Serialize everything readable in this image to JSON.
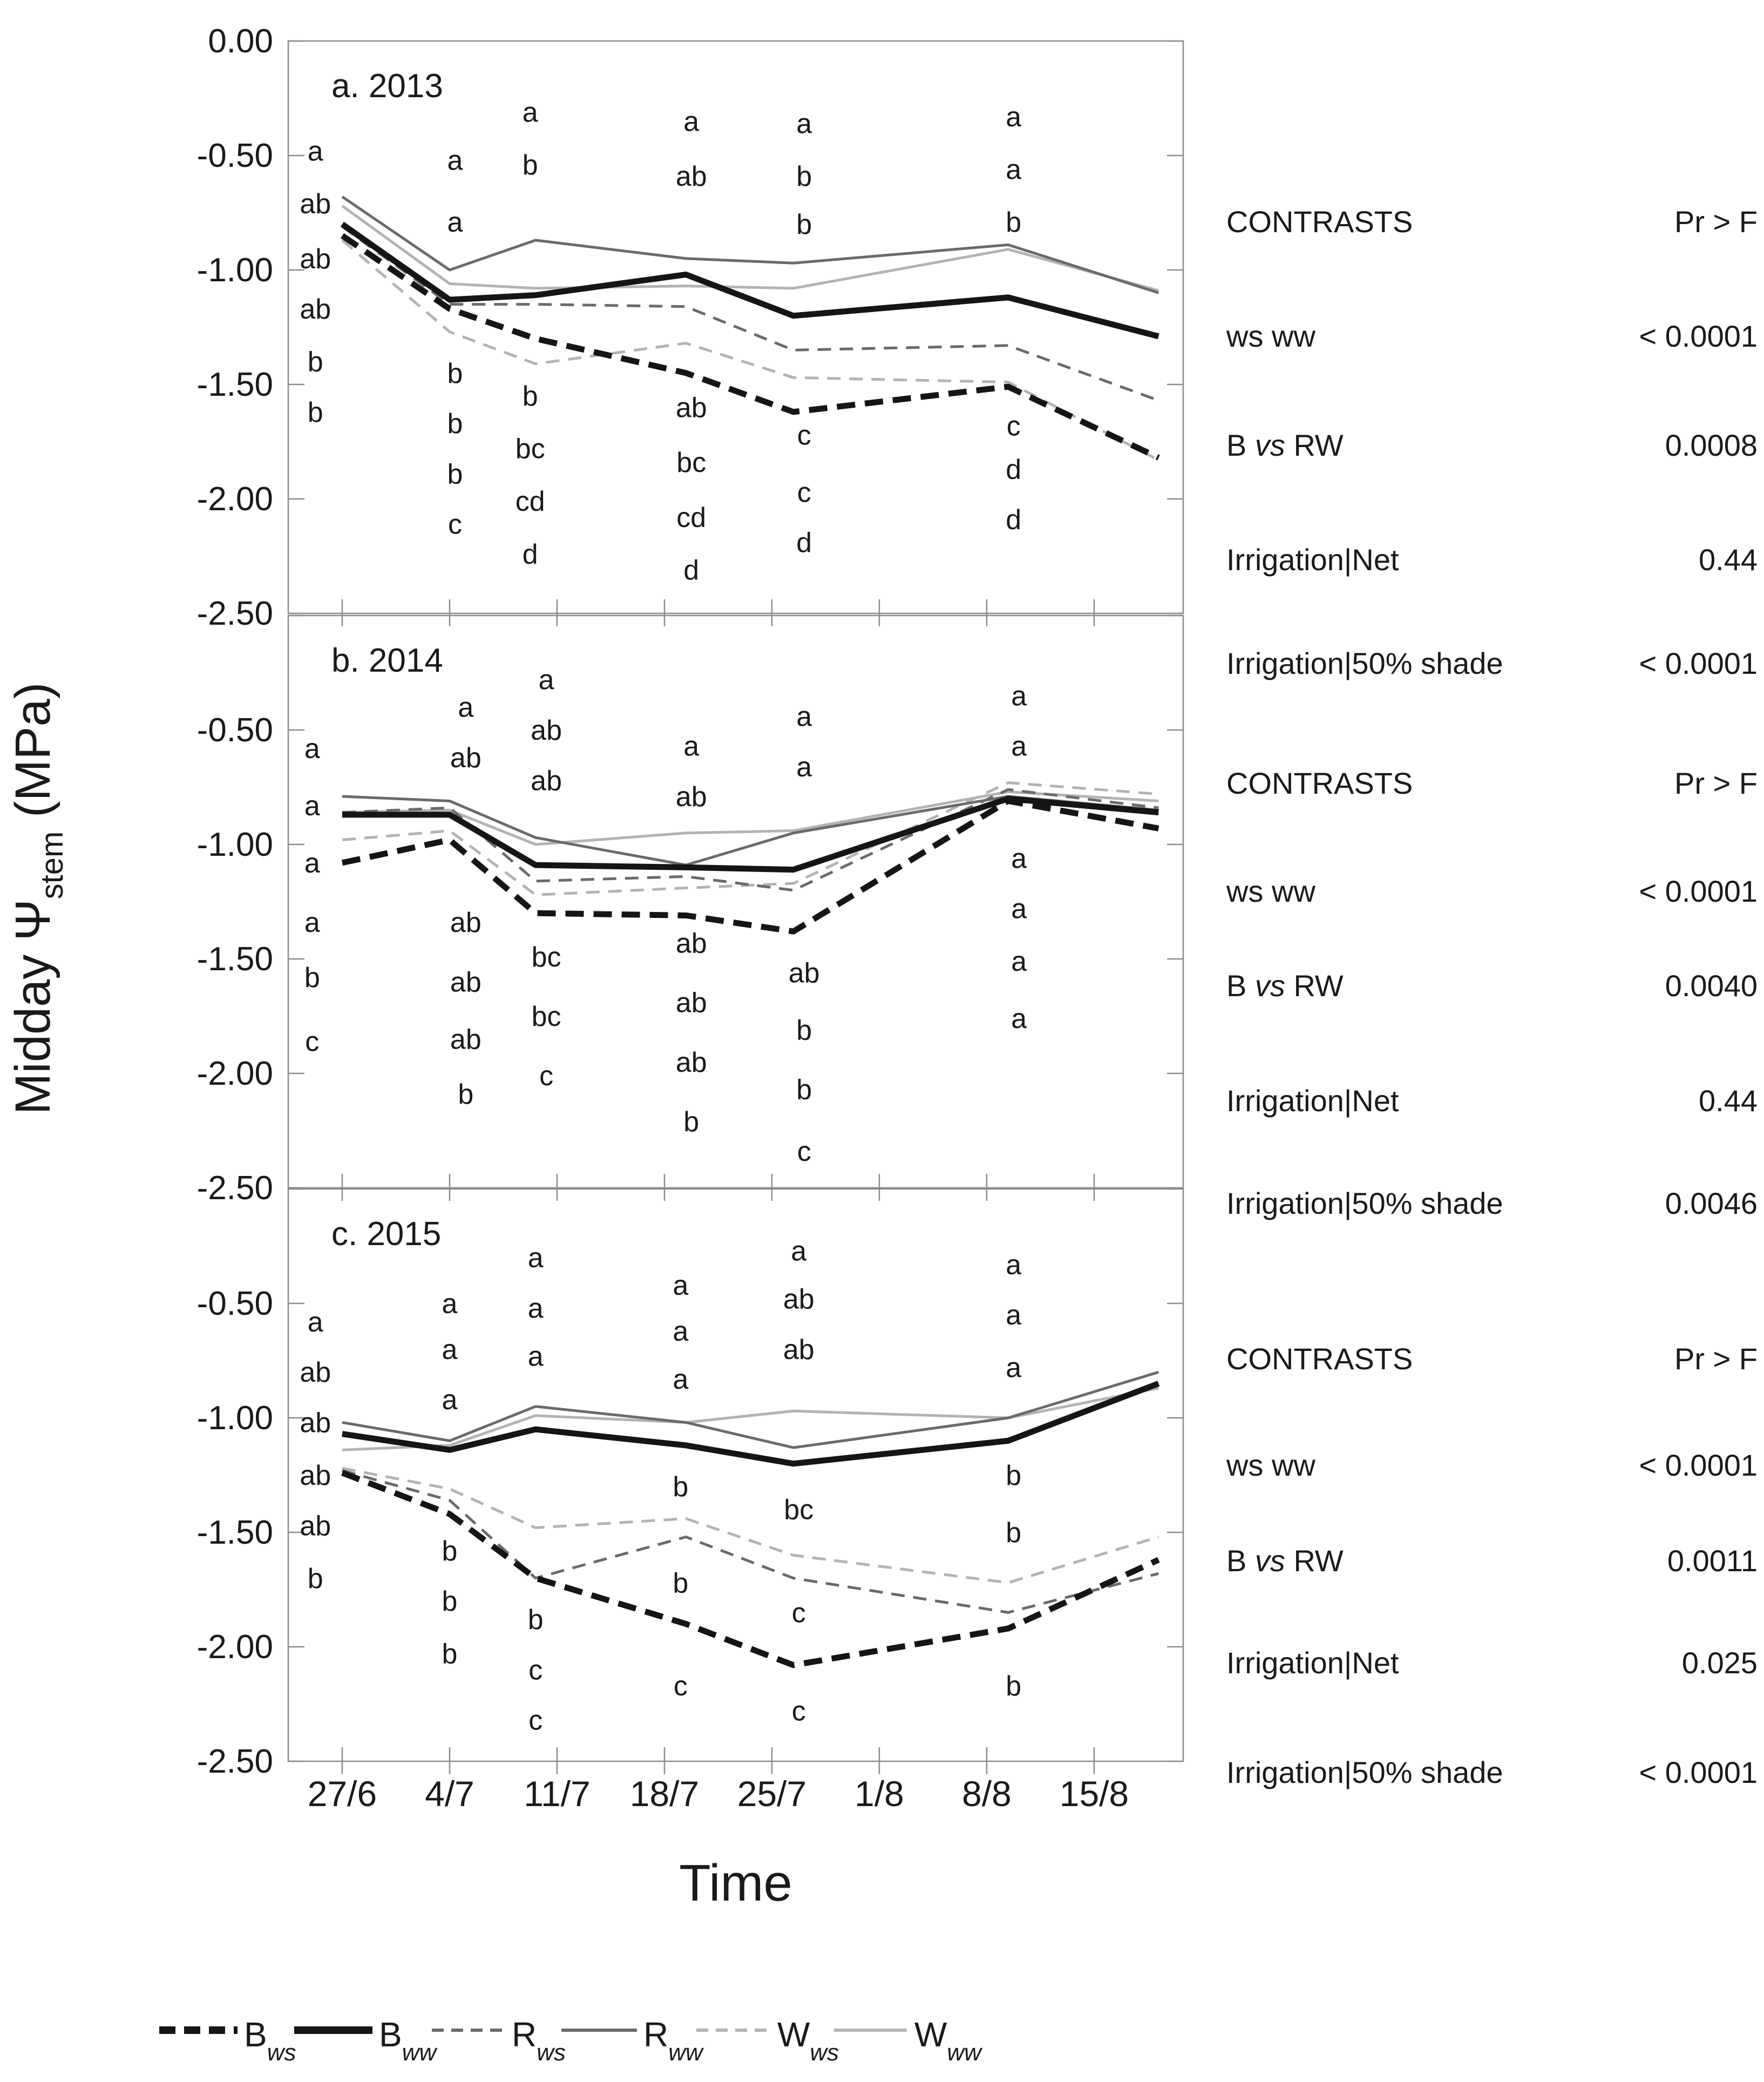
{
  "figure": {
    "y_axis_title": {
      "pre": "Midday Ψ",
      "sub": "stem",
      "post": " (MPa)"
    },
    "x_axis_title": "Time",
    "x_tick_labels": [
      "27/6",
      "4/7",
      "11/7",
      "18/7",
      "25/7",
      "1/8",
      "8/8",
      "15/8"
    ],
    "colors": {
      "B": "#151515",
      "R": "#6a6a6a",
      "W": "#b3b3b3",
      "axis": "#8c8c8c"
    },
    "legend": [
      {
        "name": "B",
        "sub": "ws",
        "series": "B_ws",
        "style": "dashed",
        "weight": "thick",
        "color_key": "B"
      },
      {
        "name": "B",
        "sub": "ww",
        "series": "B_ww",
        "style": "solid",
        "weight": "thick",
        "color_key": "B"
      },
      {
        "name": "R",
        "sub": "ws",
        "series": "R_ws",
        "style": "dashed",
        "weight": "thin",
        "color_key": "R"
      },
      {
        "name": "R",
        "sub": "ww",
        "series": "R_ww",
        "style": "solid",
        "weight": "thin",
        "color_key": "R"
      },
      {
        "name": "W",
        "sub": "ws",
        "series": "W_ws",
        "style": "dashed",
        "weight": "thin",
        "color_key": "W"
      },
      {
        "name": "W",
        "sub": "ww",
        "series": "W_ww",
        "style": "solid",
        "weight": "thin",
        "color_key": "W"
      }
    ]
  },
  "chart_data": [
    {
      "type": "line",
      "panel": "a",
      "title": "a. 2013",
      "ylabel": "Midday Ψstem (MPa)",
      "xlabel": "Time",
      "ylim": [
        -2.5,
        0
      ],
      "grid": false,
      "y_tick_labels": [
        "0.00",
        "-0.50",
        "-1.00",
        "-1.50",
        "-2.00",
        "-2.50"
      ],
      "x_units": [
        0,
        1,
        1.8,
        3.2,
        4.2,
        6.2,
        7.6
      ],
      "series": [
        {
          "name": "W_ww",
          "values": [
            -0.72,
            -1.06,
            -1.08,
            -1.07,
            -1.08,
            -0.91,
            -1.09
          ]
        },
        {
          "name": "W_ws",
          "values": [
            -0.87,
            -1.27,
            -1.41,
            -1.32,
            -1.47,
            -1.49,
            -1.83
          ]
        },
        {
          "name": "R_ww",
          "values": [
            -0.68,
            -1.0,
            -0.87,
            -0.95,
            -0.97,
            -0.89,
            -1.1
          ]
        },
        {
          "name": "R_ws",
          "values": [
            -0.81,
            -1.15,
            -1.15,
            -1.16,
            -1.35,
            -1.33,
            -1.57
          ]
        },
        {
          "name": "B_ww",
          "values": [
            -0.8,
            -1.13,
            -1.11,
            -1.02,
            -1.2,
            -1.12,
            -1.29
          ]
        },
        {
          "name": "B_ws",
          "values": [
            -0.85,
            -1.17,
            -1.3,
            -1.45,
            -1.62,
            -1.51,
            -1.82
          ]
        }
      ],
      "sig_letters": [
        {
          "x": -0.25,
          "items": [
            [
              -0.48,
              "a"
            ],
            [
              -0.71,
              "ab"
            ],
            [
              -0.95,
              "ab"
            ],
            [
              -1.17,
              "ab"
            ],
            [
              -1.4,
              "b"
            ],
            [
              -1.62,
              "b"
            ]
          ]
        },
        {
          "x": 1.05,
          "items": [
            [
              -0.52,
              "a"
            ],
            [
              -0.79,
              "a"
            ],
            [
              -1.45,
              "b"
            ],
            [
              -1.67,
              "b"
            ],
            [
              -1.89,
              "b"
            ],
            [
              -2.11,
              "c"
            ]
          ]
        },
        {
          "x": 1.75,
          "items": [
            [
              -0.31,
              "a"
            ],
            [
              -0.54,
              "b"
            ],
            [
              -1.55,
              "b"
            ],
            [
              -1.78,
              "bc"
            ],
            [
              -2.01,
              "cd"
            ],
            [
              -2.24,
              "d"
            ]
          ]
        },
        {
          "x": 3.25,
          "items": [
            [
              -0.35,
              "a"
            ],
            [
              -0.59,
              "ab"
            ],
            [
              -1.6,
              "ab"
            ],
            [
              -1.84,
              "bc"
            ],
            [
              -2.08,
              "cd"
            ],
            [
              -2.31,
              "d"
            ]
          ]
        },
        {
          "x": 4.3,
          "items": [
            [
              -0.36,
              "a"
            ],
            [
              -0.59,
              "b"
            ],
            [
              -0.8,
              "b"
            ],
            [
              -1.72,
              "c"
            ],
            [
              -1.97,
              "c"
            ],
            [
              -2.19,
              "d"
            ]
          ]
        },
        {
          "x": 6.25,
          "items": [
            [
              -0.33,
              "a"
            ],
            [
              -0.56,
              "a"
            ],
            [
              -0.79,
              "b"
            ],
            [
              -1.68,
              "c"
            ],
            [
              -1.87,
              "d"
            ],
            [
              -2.09,
              "d"
            ]
          ]
        }
      ],
      "contrasts": {
        "title": "CONTRASTS",
        "col": "Pr > F",
        "rows": [
          [
            "ws ww",
            "< 0.0001"
          ],
          [
            "B vs RW",
            "0.0008"
          ],
          [
            "Irrigation|Net",
            "0.44"
          ],
          [
            "Irrigation|50% shade",
            "< 0.0001"
          ]
        ]
      }
    },
    {
      "type": "line",
      "panel": "b",
      "title": "b. 2014",
      "ylabel": "Midday Ψstem (MPa)",
      "xlabel": "Time",
      "ylim": [
        -2.5,
        0
      ],
      "grid": false,
      "y_tick_labels": [
        "-0.50",
        "-1.00",
        "-1.50",
        "-2.00",
        "-2.50"
      ],
      "x_units": [
        0,
        1,
        1.8,
        3.2,
        4.2,
        6.2,
        7.6
      ],
      "series": [
        {
          "name": "W_ww",
          "values": [
            -0.86,
            -0.85,
            -1.0,
            -0.95,
            -0.94,
            -0.77,
            -0.81
          ]
        },
        {
          "name": "W_ws",
          "values": [
            -0.98,
            -0.94,
            -1.22,
            -1.19,
            -1.17,
            -0.73,
            -0.78
          ]
        },
        {
          "name": "R_ww",
          "values": [
            -0.79,
            -0.81,
            -0.97,
            -1.09,
            -0.95,
            -0.79,
            -0.85
          ]
        },
        {
          "name": "R_ws",
          "values": [
            -0.86,
            -0.84,
            -1.16,
            -1.14,
            -1.2,
            -0.76,
            -0.84
          ]
        },
        {
          "name": "B_ww",
          "values": [
            -0.87,
            -0.87,
            -1.09,
            -1.1,
            -1.11,
            -0.8,
            -0.86
          ]
        },
        {
          "name": "B_ws",
          "values": [
            -1.08,
            -0.98,
            -1.3,
            -1.31,
            -1.38,
            -0.81,
            -0.93
          ]
        }
      ],
      "sig_letters": [
        {
          "x": -0.28,
          "items": [
            [
              -0.58,
              "a"
            ],
            [
              -0.83,
              "a"
            ],
            [
              -1.08,
              "a"
            ],
            [
              -1.34,
              "a"
            ],
            [
              -1.58,
              "b"
            ],
            [
              -1.86,
              "c"
            ]
          ]
        },
        {
          "x": 1.15,
          "items": [
            [
              -0.4,
              "a"
            ],
            [
              -0.62,
              "ab"
            ],
            [
              -1.34,
              "ab"
            ],
            [
              -1.6,
              "ab"
            ],
            [
              -1.85,
              "ab"
            ],
            [
              -2.09,
              "b"
            ]
          ]
        },
        {
          "x": 1.9,
          "items": [
            [
              -0.28,
              "a"
            ],
            [
              -0.5,
              "ab"
            ],
            [
              -0.72,
              "ab"
            ],
            [
              -1.49,
              "bc"
            ],
            [
              -1.75,
              "bc"
            ],
            [
              -2.01,
              "c"
            ]
          ]
        },
        {
          "x": 3.25,
          "items": [
            [
              -0.57,
              "a"
            ],
            [
              -0.79,
              "ab"
            ],
            [
              -1.43,
              "ab"
            ],
            [
              -1.69,
              "ab"
            ],
            [
              -1.95,
              "ab"
            ],
            [
              -2.21,
              "b"
            ]
          ]
        },
        {
          "x": 4.3,
          "items": [
            [
              -0.44,
              "a"
            ],
            [
              -0.66,
              "a"
            ],
            [
              -1.56,
              "ab"
            ],
            [
              -1.81,
              "b"
            ],
            [
              -2.07,
              "b"
            ],
            [
              -2.34,
              "c"
            ]
          ]
        },
        {
          "x": 6.3,
          "items": [
            [
              -0.35,
              "a"
            ],
            [
              -0.57,
              "a"
            ],
            [
              -1.06,
              "a"
            ],
            [
              -1.28,
              "a"
            ],
            [
              -1.51,
              "a"
            ],
            [
              -1.76,
              "a"
            ]
          ]
        }
      ],
      "contrasts": {
        "title": "CONTRASTS",
        "col": "Pr > F",
        "rows": [
          [
            "ws ww",
            "< 0.0001"
          ],
          [
            "B vs RW",
            "0.0040"
          ],
          [
            "Irrigation|Net",
            "0.44"
          ],
          [
            "Irrigation|50% shade",
            "0.0046"
          ]
        ]
      }
    },
    {
      "type": "line",
      "panel": "c",
      "title": "c. 2015",
      "ylabel": "Midday Ψstem (MPa)",
      "xlabel": "Time",
      "ylim": [
        -2.5,
        0
      ],
      "grid": false,
      "y_tick_labels": [
        "-0.50",
        "-1.00",
        "-1.50",
        "-2.00",
        "-2.50"
      ],
      "x_units": [
        0,
        1,
        1.8,
        3.2,
        4.2,
        6.2,
        7.6
      ],
      "series": [
        {
          "name": "W_ww",
          "values": [
            -1.14,
            -1.12,
            -0.99,
            -1.02,
            -0.97,
            -1.0,
            -0.87
          ]
        },
        {
          "name": "W_ws",
          "values": [
            -1.22,
            -1.31,
            -1.48,
            -1.44,
            -1.6,
            -1.72,
            -1.52
          ]
        },
        {
          "name": "R_ww",
          "values": [
            -1.02,
            -1.1,
            -0.95,
            -1.02,
            -1.13,
            -1.0,
            -0.8
          ]
        },
        {
          "name": "R_ws",
          "values": [
            -1.23,
            -1.36,
            -1.7,
            -1.52,
            -1.7,
            -1.85,
            -1.68
          ]
        },
        {
          "name": "B_ww",
          "values": [
            -1.07,
            -1.14,
            -1.05,
            -1.12,
            -1.2,
            -1.1,
            -0.85
          ]
        },
        {
          "name": "B_ws",
          "values": [
            -1.24,
            -1.42,
            -1.7,
            -1.9,
            -2.08,
            -1.92,
            -1.62
          ]
        }
      ],
      "sig_letters": [
        {
          "x": -0.25,
          "items": [
            [
              -0.58,
              "a"
            ],
            [
              -0.8,
              "ab"
            ],
            [
              -1.02,
              "ab"
            ],
            [
              -1.25,
              "ab"
            ],
            [
              -1.47,
              "ab"
            ],
            [
              -1.7,
              "b"
            ]
          ]
        },
        {
          "x": 1.0,
          "items": [
            [
              -0.5,
              "a"
            ],
            [
              -0.7,
              "a"
            ],
            [
              -0.92,
              "a"
            ],
            [
              -1.58,
              "b"
            ],
            [
              -1.8,
              "b"
            ],
            [
              -2.03,
              "b"
            ]
          ]
        },
        {
          "x": 1.8,
          "items": [
            [
              -0.3,
              "a"
            ],
            [
              -0.52,
              "a"
            ],
            [
              -0.73,
              "a"
            ],
            [
              -1.88,
              "b"
            ],
            [
              -2.1,
              "c"
            ],
            [
              -2.32,
              "c"
            ]
          ]
        },
        {
          "x": 3.15,
          "items": [
            [
              -0.42,
              "a"
            ],
            [
              -0.62,
              "a"
            ],
            [
              -0.83,
              "a"
            ],
            [
              -1.3,
              "b"
            ],
            [
              -1.72,
              "b"
            ],
            [
              -2.17,
              "c"
            ]
          ]
        },
        {
          "x": 4.25,
          "items": [
            [
              -0.27,
              "a"
            ],
            [
              -0.48,
              "ab"
            ],
            [
              -0.7,
              "ab"
            ],
            [
              -1.4,
              "bc"
            ],
            [
              -1.85,
              "c"
            ],
            [
              -2.28,
              "c"
            ]
          ]
        },
        {
          "x": 6.25,
          "items": [
            [
              -0.33,
              "a"
            ],
            [
              -0.55,
              "a"
            ],
            [
              -0.78,
              "a"
            ],
            [
              -1.25,
              "b"
            ],
            [
              -1.5,
              "b"
            ],
            [
              -2.17,
              "b"
            ]
          ]
        }
      ],
      "contrasts": {
        "title": "CONTRASTS",
        "col": "Pr > F",
        "rows": [
          [
            "ws ww",
            "< 0.0001"
          ],
          [
            "B vs RW",
            "0.0011"
          ],
          [
            "Irrigation|Net",
            "0.025"
          ],
          [
            "Irrigation|50% shade",
            "< 0.0001"
          ]
        ]
      }
    }
  ]
}
